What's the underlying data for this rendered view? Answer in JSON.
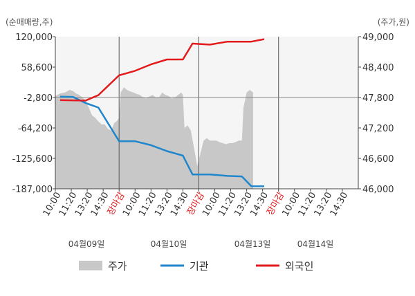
{
  "chart_data": {
    "type": "line",
    "left_axis_unit": "(순매매량,주)",
    "right_axis_unit": "(주가,원)",
    "y_left_ticks": [
      "120,000",
      "58,600",
      "-2,800",
      "-64,200",
      "-125,600",
      "-187,000"
    ],
    "y_right_ticks": [
      "49,000",
      "48,400",
      "47,800",
      "47,200",
      "46,600",
      "46,000"
    ],
    "y_left_range": [
      -187000,
      120000
    ],
    "y_right_range": [
      46000,
      49000
    ],
    "x_tick_labels": [
      {
        "text": "10:00",
        "red": false
      },
      {
        "text": "11:20",
        "red": false
      },
      {
        "text": "13:20",
        "red": false
      },
      {
        "text": "14:30",
        "red": false
      },
      {
        "text": "장마감",
        "red": true
      },
      {
        "text": "10:00",
        "red": false
      },
      {
        "text": "11:20",
        "red": false
      },
      {
        "text": "13:20",
        "red": false
      },
      {
        "text": "14:30",
        "red": false
      },
      {
        "text": "장마감",
        "red": true
      },
      {
        "text": "10:00",
        "red": false
      },
      {
        "text": "11:20",
        "red": false
      },
      {
        "text": "13:20",
        "red": false
      },
      {
        "text": "14:30",
        "red": false
      },
      {
        "text": "장마감",
        "red": true
      },
      {
        "text": "10:00",
        "red": false
      },
      {
        "text": "11:20",
        "red": false
      },
      {
        "text": "13:20",
        "red": false
      },
      {
        "text": "14:30",
        "red": false
      }
    ],
    "dates": [
      "04월09일",
      "04월10일",
      "04월13일",
      "04월14일"
    ],
    "series": [
      {
        "name": "주가",
        "type": "area",
        "color": "#c8c8c8",
        "axis": "right",
        "points": [
          [
            0,
            47830
          ],
          [
            0.3,
            47880
          ],
          [
            0.6,
            47900
          ],
          [
            0.9,
            47950
          ],
          [
            1.1,
            47930
          ],
          [
            1.3,
            47880
          ],
          [
            1.5,
            47850
          ],
          [
            1.7,
            47800
          ],
          [
            1.9,
            47750
          ],
          [
            2.1,
            47600
          ],
          [
            2.3,
            47450
          ],
          [
            2.5,
            47400
          ],
          [
            2.7,
            47330
          ],
          [
            2.9,
            47270
          ],
          [
            3.1,
            47270
          ],
          [
            3.3,
            47180
          ],
          [
            3.5,
            47150
          ],
          [
            3.7,
            47300
          ],
          [
            3.9,
            47350
          ],
          [
            4.0,
            47400
          ],
          [
            4.1,
            47900
          ],
          [
            4.3,
            48000
          ],
          [
            4.5,
            47950
          ],
          [
            4.7,
            47920
          ],
          [
            4.9,
            47900
          ],
          [
            5.1,
            47870
          ],
          [
            5.3,
            47850
          ],
          [
            5.5,
            47800
          ],
          [
            5.7,
            47780
          ],
          [
            5.9,
            47820
          ],
          [
            6.1,
            47850
          ],
          [
            6.3,
            47800
          ],
          [
            6.5,
            47800
          ],
          [
            6.7,
            47900
          ],
          [
            6.9,
            47850
          ],
          [
            7.1,
            47830
          ],
          [
            7.3,
            47780
          ],
          [
            7.5,
            47800
          ],
          [
            7.7,
            47850
          ],
          [
            7.9,
            47900
          ],
          [
            8.0,
            47850
          ],
          [
            8.1,
            47200
          ],
          [
            8.3,
            47250
          ],
          [
            8.5,
            47150
          ],
          [
            8.7,
            46800
          ],
          [
            8.9,
            46450
          ],
          [
            9.1,
            46700
          ],
          [
            9.3,
            46950
          ],
          [
            9.5,
            47000
          ],
          [
            9.7,
            46950
          ],
          [
            9.9,
            46950
          ],
          [
            10.1,
            46950
          ],
          [
            10.3,
            46920
          ],
          [
            10.5,
            46900
          ],
          [
            10.7,
            46880
          ],
          [
            10.9,
            46900
          ],
          [
            11.1,
            46900
          ],
          [
            11.3,
            46920
          ],
          [
            11.5,
            46950
          ],
          [
            11.7,
            46950
          ],
          [
            11.8,
            47600
          ],
          [
            12.0,
            47900
          ],
          [
            12.2,
            47950
          ],
          [
            12.4,
            47900
          ]
        ]
      },
      {
        "name": "기관",
        "type": "line",
        "color": "#1f86cc",
        "axis": "left",
        "points": [
          [
            0.3,
            -1000
          ],
          [
            1.1,
            -1500
          ],
          [
            1.9,
            -14000
          ],
          [
            2.7,
            -23000
          ],
          [
            4.0,
            -91000
          ],
          [
            5.0,
            -91000
          ],
          [
            6.0,
            -99000
          ],
          [
            7.0,
            -111000
          ],
          [
            8.0,
            -120000
          ],
          [
            8.6,
            -158000
          ],
          [
            9.7,
            -158000
          ],
          [
            10.8,
            -161000
          ],
          [
            11.7,
            -162000
          ],
          [
            12.3,
            -182000
          ],
          [
            13.1,
            -182000
          ]
        ]
      },
      {
        "name": "외국인",
        "type": "line",
        "color": "#e31a1c",
        "axis": "left",
        "points": [
          [
            0.3,
            -8000
          ],
          [
            1.1,
            -8500
          ],
          [
            1.9,
            -9000
          ],
          [
            2.7,
            2000
          ],
          [
            4.0,
            42000
          ],
          [
            5.0,
            51000
          ],
          [
            6.0,
            64000
          ],
          [
            7.0,
            74000
          ],
          [
            8.0,
            74000
          ],
          [
            8.6,
            106000
          ],
          [
            9.7,
            104000
          ],
          [
            10.8,
            110000
          ],
          [
            11.7,
            110000
          ],
          [
            12.3,
            110000
          ],
          [
            13.1,
            115000
          ]
        ]
      }
    ],
    "grid": false,
    "legend_position": "bottom"
  }
}
